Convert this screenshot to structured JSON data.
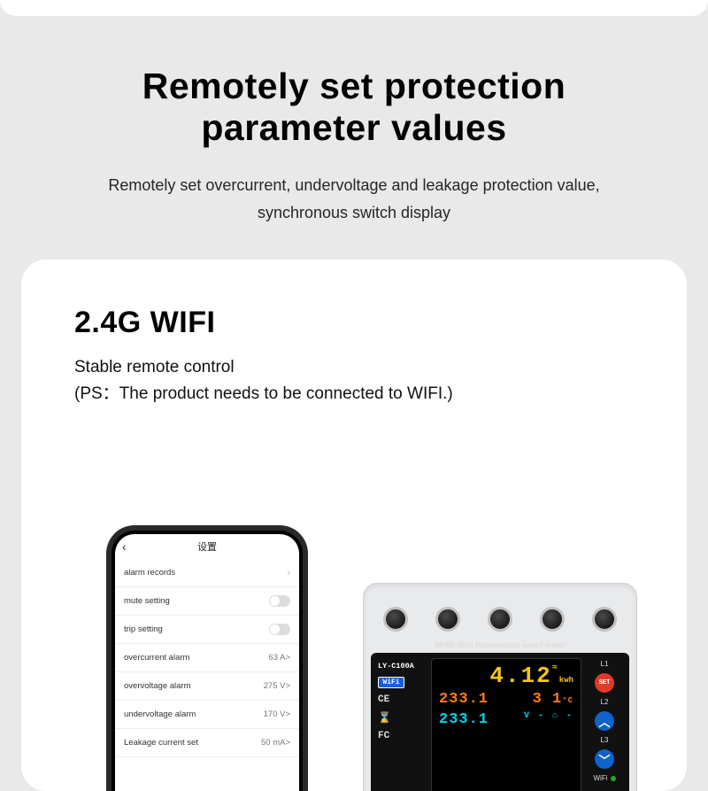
{
  "hero": {
    "title_l1": "Remotely set protection",
    "title_l2": "parameter values",
    "desc_l1": "Remotely set overcurrent, undervoltage and leakage protection value,",
    "desc_l2": "synchronous switch display"
  },
  "card": {
    "title": "2.4G WIFI",
    "sub_l1": "Stable remote control",
    "sub_l2": "(PS：The product needs to be connected to WIFI.)"
  },
  "phone": {
    "header": "设置",
    "rows": [
      {
        "label": "alarm records",
        "kind": "nav",
        "value": ""
      },
      {
        "label": "mute setting",
        "kind": "toggle",
        "value": ""
      },
      {
        "label": "trip setting",
        "kind": "toggle",
        "value": ""
      },
      {
        "label": "overcurrent alarm",
        "kind": "val",
        "value": "63 A>"
      },
      {
        "label": "overvoltage alarm",
        "kind": "val",
        "value": "275 V>"
      },
      {
        "label": "undervoltage alarm",
        "kind": "val",
        "value": "170 V>"
      },
      {
        "label": "Leakage current set",
        "kind": "val",
        "value": "50 mA>"
      }
    ]
  },
  "meter": {
    "title": "3P4W WiFi Photovoltaic smart meter",
    "model": "LY-C100A",
    "wifi_badge": "WiFi",
    "ce": "CE",
    "fc": "FC",
    "kwh_value": "4.12",
    "kwh_unit": "kwh",
    "row_o_left": "233.1",
    "row_o_right": "3 1",
    "temp_unit": "°C",
    "row_c_left": "233.1",
    "row_c_right": "V - ⌂ -",
    "labels": {
      "l1": "L1",
      "l2": "L2",
      "l3": "L3",
      "wifi": "WiFi"
    },
    "buttons": {
      "set": "SET",
      "up": "︿",
      "down": "﹀"
    }
  },
  "colors": {
    "page_bg": "#e9e9e9",
    "card_bg": "#ffffff",
    "kwh": "#f5c518",
    "orange": "#ff7a1a",
    "cyan": "#00d5e6",
    "btn_set": "#e23a2a",
    "btn_blue": "#0e63cc",
    "wifi_badge": "#1460d6"
  }
}
